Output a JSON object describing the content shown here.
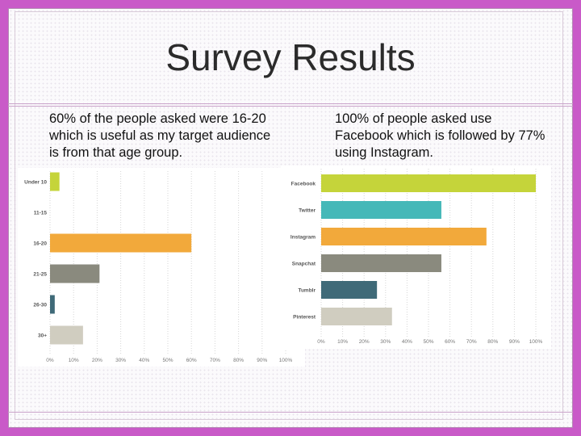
{
  "slide": {
    "title": "Survey Results",
    "left_caption": "60% of the people asked were 16-20 which is useful as my target audience is from that age group.",
    "right_caption": "100% of people asked use Facebook which is followed by 77% using Instagram."
  },
  "chart_data": [
    {
      "type": "bar",
      "orientation": "horizontal",
      "categories": [
        "Under 10",
        "11-15",
        "16-20",
        "21-25",
        "26-30",
        "30+"
      ],
      "values": [
        4,
        0,
        60,
        21,
        2,
        14
      ],
      "colors": [
        "#c5d43a",
        "#45b8b8",
        "#f2a93b",
        "#8a8a7e",
        "#3f6a78",
        "#d0cdc0"
      ],
      "xlim": [
        0,
        100
      ],
      "x_ticks": [
        "0%",
        "10%",
        "20%",
        "30%",
        "40%",
        "50%",
        "60%",
        "70%",
        "80%",
        "90%",
        "100%"
      ],
      "grid": true
    },
    {
      "type": "bar",
      "orientation": "horizontal",
      "categories": [
        "Facebook",
        "Twitter",
        "Instagram",
        "Snapchat",
        "Tumblr",
        "Pinterest"
      ],
      "values": [
        100,
        56,
        77,
        56,
        26,
        33
      ],
      "colors": [
        "#c5d43a",
        "#45b8b8",
        "#f2a93b",
        "#8a8a7e",
        "#3f6a78",
        "#d0cdc0"
      ],
      "xlim": [
        0,
        100
      ],
      "x_ticks": [
        "0%",
        "10%",
        "20%",
        "30%",
        "40%",
        "50%",
        "60%",
        "70%",
        "80%",
        "90%",
        "100%"
      ],
      "grid": true
    }
  ]
}
